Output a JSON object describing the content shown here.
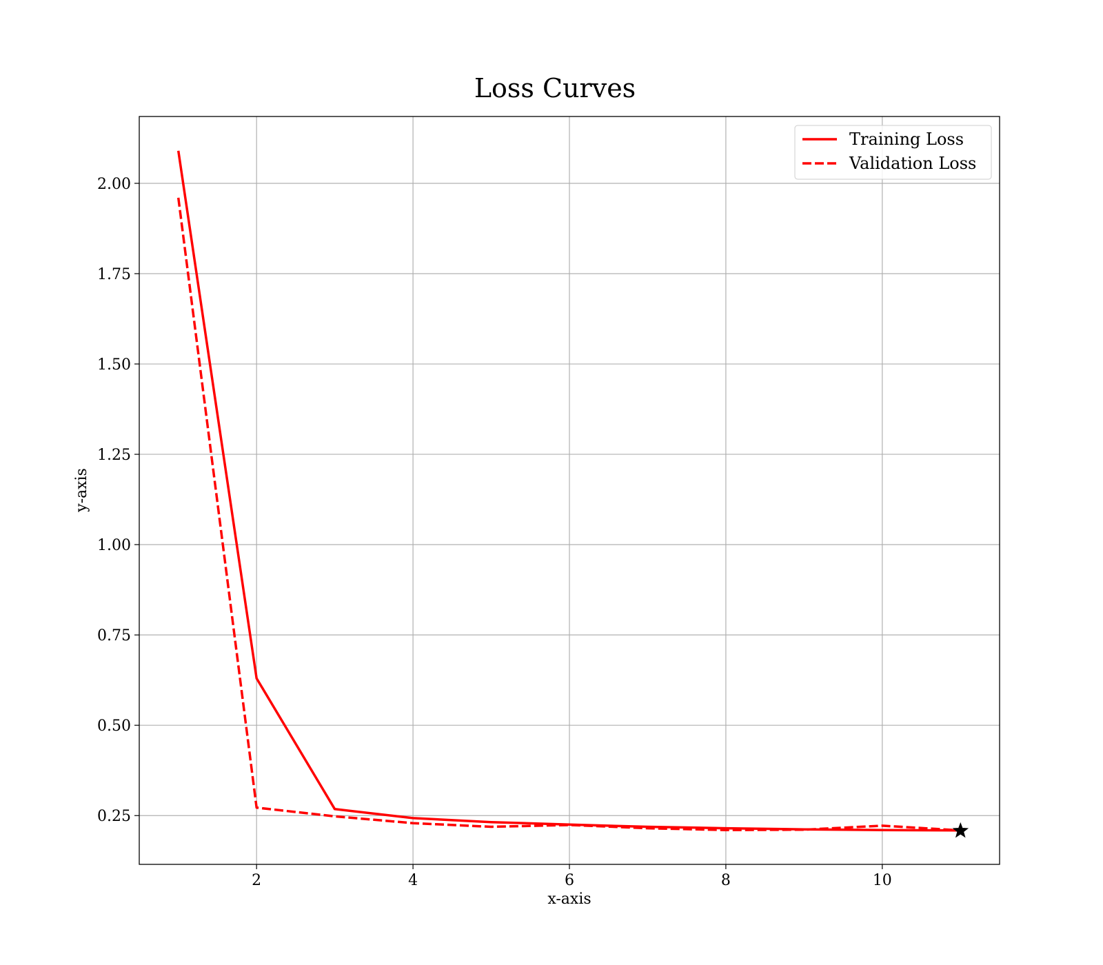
{
  "chart_data": {
    "type": "line",
    "title": "Loss Curves",
    "xlabel": "x-axis",
    "ylabel": "y-axis",
    "xlim": [
      0.5,
      11.5
    ],
    "ylim": [
      0.115,
      2.185
    ],
    "xticks": [
      2,
      4,
      6,
      8,
      10
    ],
    "yticks": [
      0.25,
      0.5,
      0.75,
      1.0,
      1.25,
      1.5,
      1.75,
      2.0
    ],
    "xtick_labels": [
      "2",
      "4",
      "6",
      "8",
      "10"
    ],
    "ytick_labels": [
      "0.25",
      "0.50",
      "0.75",
      "1.00",
      "1.25",
      "1.50",
      "1.75",
      "2.00"
    ],
    "grid": true,
    "legend_position": "top-right",
    "series": [
      {
        "name": "Training Loss",
        "style": "solid",
        "color": "#ff0000",
        "x": [
          1,
          2,
          3,
          4,
          5,
          6,
          7,
          8,
          9,
          10,
          11
        ],
        "y": [
          2.09,
          0.63,
          0.268,
          0.243,
          0.232,
          0.225,
          0.219,
          0.215,
          0.212,
          0.21,
          0.209
        ]
      },
      {
        "name": "Validation Loss",
        "style": "dashed",
        "color": "#ff0000",
        "x": [
          1,
          2,
          3,
          4,
          5,
          6,
          7,
          8,
          9,
          10,
          11
        ],
        "y": [
          1.96,
          0.272,
          0.248,
          0.229,
          0.219,
          0.224,
          0.215,
          0.21,
          0.211,
          0.222,
          0.209
        ]
      }
    ],
    "marker": {
      "shape": "star",
      "color": "#000000",
      "x": 11,
      "y": 0.208
    }
  }
}
